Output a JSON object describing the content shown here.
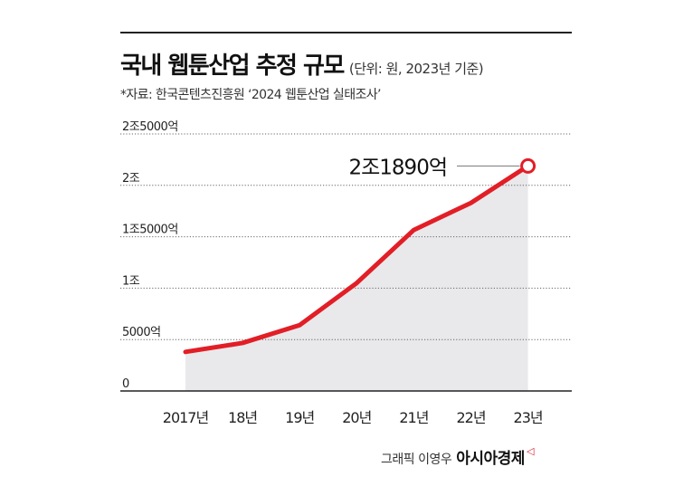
{
  "header": {
    "title": "국내 웹툰산업 추정 규모",
    "unit_note": "(단위: 원, 2023년 기준)",
    "source": "*자료: 한국콘텐츠진흥원 ‘2024 웹툰산업 실태조사’"
  },
  "chart_data": {
    "type": "line",
    "title": "국내 웹툰산업 추정 규모",
    "x": [
      "2017년",
      "18년",
      "19년",
      "20년",
      "21년",
      "22년",
      "23년"
    ],
    "ytick_labels": [
      "0",
      "5000억",
      "1조",
      "1조5000억",
      "2조",
      "2조5000억"
    ],
    "ytick_values": [
      0,
      5000,
      10000,
      15000,
      20000,
      25000
    ],
    "ylim": [
      0,
      25000
    ],
    "grid": true,
    "series": [
      {
        "values": [
          3800,
          4670,
          6400,
          10500,
          15660,
          18290,
          21890
        ]
      }
    ],
    "annotation": {
      "label": "2조1890억",
      "point_index": 6
    },
    "colors": {
      "line": "#e21e26",
      "area": "#e9e9eb",
      "grid": "#666666"
    }
  },
  "footer": {
    "credit": "그래픽 이영우",
    "brand": "아시아경제",
    "brand_mark": "◁"
  }
}
